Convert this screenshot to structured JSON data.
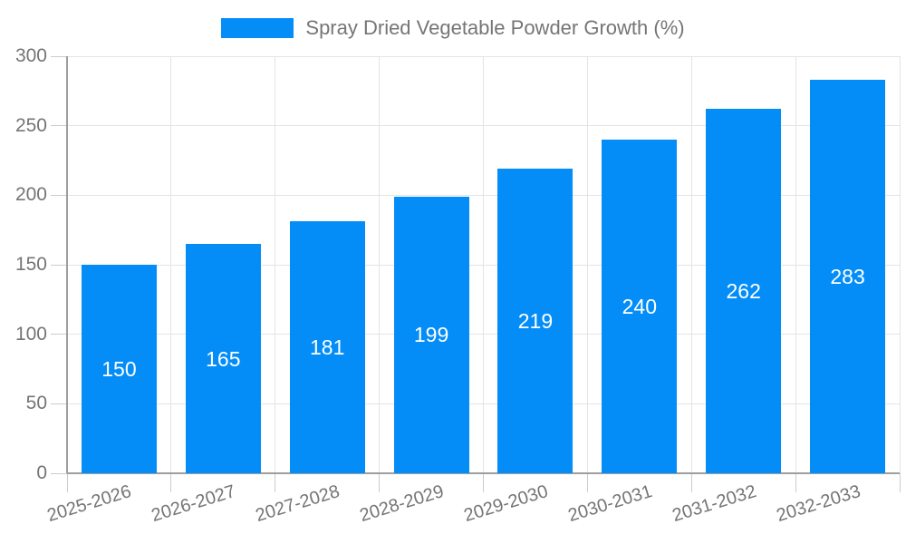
{
  "legend": {
    "label": "Spray Dried Vegetable Powder Growth (%)"
  },
  "colors": {
    "bar": "#058df7",
    "grid": "#e4e4e4",
    "axis": "#9e9e9e",
    "tick": "#cccccc",
    "text": "#757575",
    "bar_label": "#ffffff",
    "background": "#ffffff"
  },
  "chart_data": {
    "type": "bar",
    "title": "Spray Dried Vegetable Powder Growth (%)",
    "categories": [
      "2025-2026",
      "2026-2027",
      "2027-2028",
      "2028-2029",
      "2029-2030",
      "2030-2031",
      "2031-2032",
      "2032-2033"
    ],
    "values": [
      150,
      165,
      181,
      199,
      219,
      240,
      262,
      283
    ],
    "xlabel": "",
    "ylabel": "",
    "ylim": [
      0,
      300
    ],
    "ytick_step": 50,
    "ytick_labels": [
      "0",
      "50",
      "100",
      "150",
      "200",
      "250",
      "300"
    ],
    "grid": true,
    "legend_position": "top",
    "bar_labels_inside": true,
    "x_label_rotation_deg": -17
  }
}
